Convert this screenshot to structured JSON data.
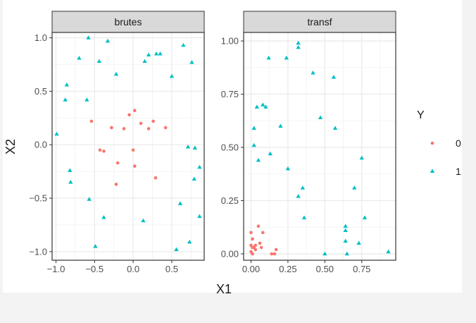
{
  "chart_data": {
    "type": "scatter",
    "xlabel": "X1",
    "ylabel": "X2",
    "legend": {
      "title": "Y",
      "placement": "right",
      "entries": [
        {
          "label": "0",
          "shape": "circle",
          "color": "#F8766D"
        },
        {
          "label": "1",
          "shape": "triangle",
          "color": "#00BFC4"
        }
      ]
    },
    "facets": [
      {
        "strip_label": "brutes",
        "xlim": [
          -1.05,
          0.92
        ],
        "ylim": [
          -1.08,
          1.05
        ],
        "x_ticks": [
          -1.0,
          -0.5,
          0.0,
          0.5
        ],
        "x_tick_labels": [
          "−1.0",
          "−0.5",
          "0.0",
          "0.5"
        ],
        "y_ticks": [
          -1.0,
          -0.5,
          0.0,
          0.5,
          1.0
        ],
        "y_tick_labels": [
          "−1.0",
          "−0.5",
          "0.0",
          "0.5",
          "1.0"
        ],
        "series": [
          {
            "name": "0",
            "points": [
              {
                "x": -0.54,
                "y": 0.22
              },
              {
                "x": -0.28,
                "y": 0.16
              },
              {
                "x": -0.12,
                "y": 0.15
              },
              {
                "x": -0.05,
                "y": 0.28
              },
              {
                "x": 0.02,
                "y": 0.32
              },
              {
                "x": 0.1,
                "y": 0.2
              },
              {
                "x": 0.2,
                "y": 0.15
              },
              {
                "x": 0.26,
                "y": 0.22
              },
              {
                "x": 0.42,
                "y": 0.16
              },
              {
                "x": -0.43,
                "y": -0.05
              },
              {
                "x": -0.38,
                "y": -0.06
              },
              {
                "x": 0.0,
                "y": -0.05
              },
              {
                "x": -0.2,
                "y": -0.17
              },
              {
                "x": 0.02,
                "y": -0.2
              },
              {
                "x": -0.22,
                "y": -0.37
              },
              {
                "x": 0.29,
                "y": -0.31
              }
            ]
          },
          {
            "name": "1",
            "points": [
              {
                "x": -0.58,
                "y": 1.0
              },
              {
                "x": -0.33,
                "y": 0.97
              },
              {
                "x": -0.7,
                "y": 0.81
              },
              {
                "x": -0.44,
                "y": 0.78
              },
              {
                "x": -0.22,
                "y": 0.66
              },
              {
                "x": 0.15,
                "y": 0.78
              },
              {
                "x": 0.2,
                "y": 0.84
              },
              {
                "x": 0.3,
                "y": 0.85
              },
              {
                "x": 0.35,
                "y": 0.85
              },
              {
                "x": 0.65,
                "y": 0.93
              },
              {
                "x": 0.76,
                "y": 0.77
              },
              {
                "x": 0.5,
                "y": 0.64
              },
              {
                "x": -0.86,
                "y": 0.56
              },
              {
                "x": -0.88,
                "y": 0.42
              },
              {
                "x": -0.6,
                "y": 0.42
              },
              {
                "x": -0.99,
                "y": 0.1
              },
              {
                "x": 0.71,
                "y": -0.02
              },
              {
                "x": 0.8,
                "y": -0.03
              },
              {
                "x": -0.82,
                "y": -0.24
              },
              {
                "x": 0.86,
                "y": -0.21
              },
              {
                "x": -0.81,
                "y": -0.35
              },
              {
                "x": 0.79,
                "y": -0.32
              },
              {
                "x": -0.57,
                "y": -0.51
              },
              {
                "x": 0.61,
                "y": -0.55
              },
              {
                "x": -0.38,
                "y": -0.68
              },
              {
                "x": 0.13,
                "y": -0.71
              },
              {
                "x": 0.86,
                "y": -0.67
              },
              {
                "x": -0.49,
                "y": -0.95
              },
              {
                "x": 0.56,
                "y": -0.98
              },
              {
                "x": 0.73,
                "y": -0.91
              }
            ]
          }
        ]
      },
      {
        "strip_label": "transf",
        "xlim": [
          -0.05,
          0.98
        ],
        "ylim": [
          -0.03,
          1.04
        ],
        "x_ticks": [
          0.0,
          0.25,
          0.5,
          0.75
        ],
        "x_tick_labels": [
          "0.00",
          "0.25",
          "0.50",
          "0.75"
        ],
        "y_ticks": [
          0.0,
          0.25,
          0.5,
          0.75,
          1.0
        ],
        "y_tick_labels": [
          "0.00",
          "0.25",
          "0.50",
          "0.75",
          "1.00"
        ],
        "series": [
          {
            "name": "0",
            "points": [
              {
                "x": 0.0,
                "y": 0.1
              },
              {
                "x": 0.01,
                "y": 0.07
              },
              {
                "x": 0.05,
                "y": 0.13
              },
              {
                "x": 0.08,
                "y": 0.1
              },
              {
                "x": 0.0,
                "y": 0.04
              },
              {
                "x": 0.01,
                "y": 0.03
              },
              {
                "x": 0.02,
                "y": 0.03
              },
              {
                "x": 0.03,
                "y": 0.02
              },
              {
                "x": 0.03,
                "y": 0.04
              },
              {
                "x": 0.06,
                "y": 0.05
              },
              {
                "x": 0.07,
                "y": 0.03
              },
              {
                "x": 0.01,
                "y": 0.0
              },
              {
                "x": 0.0,
                "y": 0.01
              },
              {
                "x": 0.14,
                "y": 0.0
              },
              {
                "x": 0.16,
                "y": 0.0
              },
              {
                "x": 0.17,
                "y": 0.02
              }
            ]
          },
          {
            "name": "1",
            "points": [
              {
                "x": 0.32,
                "y": 0.99
              },
              {
                "x": 0.32,
                "y": 0.97
              },
              {
                "x": 0.12,
                "y": 0.92
              },
              {
                "x": 0.24,
                "y": 0.92
              },
              {
                "x": 0.42,
                "y": 0.85
              },
              {
                "x": 0.56,
                "y": 0.83
              },
              {
                "x": 0.04,
                "y": 0.69
              },
              {
                "x": 0.08,
                "y": 0.7
              },
              {
                "x": 0.1,
                "y": 0.69
              },
              {
                "x": 0.47,
                "y": 0.64
              },
              {
                "x": 0.02,
                "y": 0.59
              },
              {
                "x": 0.2,
                "y": 0.6
              },
              {
                "x": 0.57,
                "y": 0.59
              },
              {
                "x": 0.02,
                "y": 0.51
              },
              {
                "x": 0.13,
                "y": 0.47
              },
              {
                "x": 0.05,
                "y": 0.44
              },
              {
                "x": 0.75,
                "y": 0.45
              },
              {
                "x": 0.25,
                "y": 0.4
              },
              {
                "x": 0.35,
                "y": 0.31
              },
              {
                "x": 0.7,
                "y": 0.31
              },
              {
                "x": 0.32,
                "y": 0.27
              },
              {
                "x": 0.36,
                "y": 0.17
              },
              {
                "x": 0.77,
                "y": 0.17
              },
              {
                "x": 0.64,
                "y": 0.13
              },
              {
                "x": 0.64,
                "y": 0.11
              },
              {
                "x": 0.64,
                "y": 0.06
              },
              {
                "x": 0.73,
                "y": 0.05
              },
              {
                "x": 0.5,
                "y": 0.0
              },
              {
                "x": 0.65,
                "y": 0.0
              },
              {
                "x": 0.93,
                "y": 0.01
              }
            ]
          }
        ]
      }
    ]
  }
}
